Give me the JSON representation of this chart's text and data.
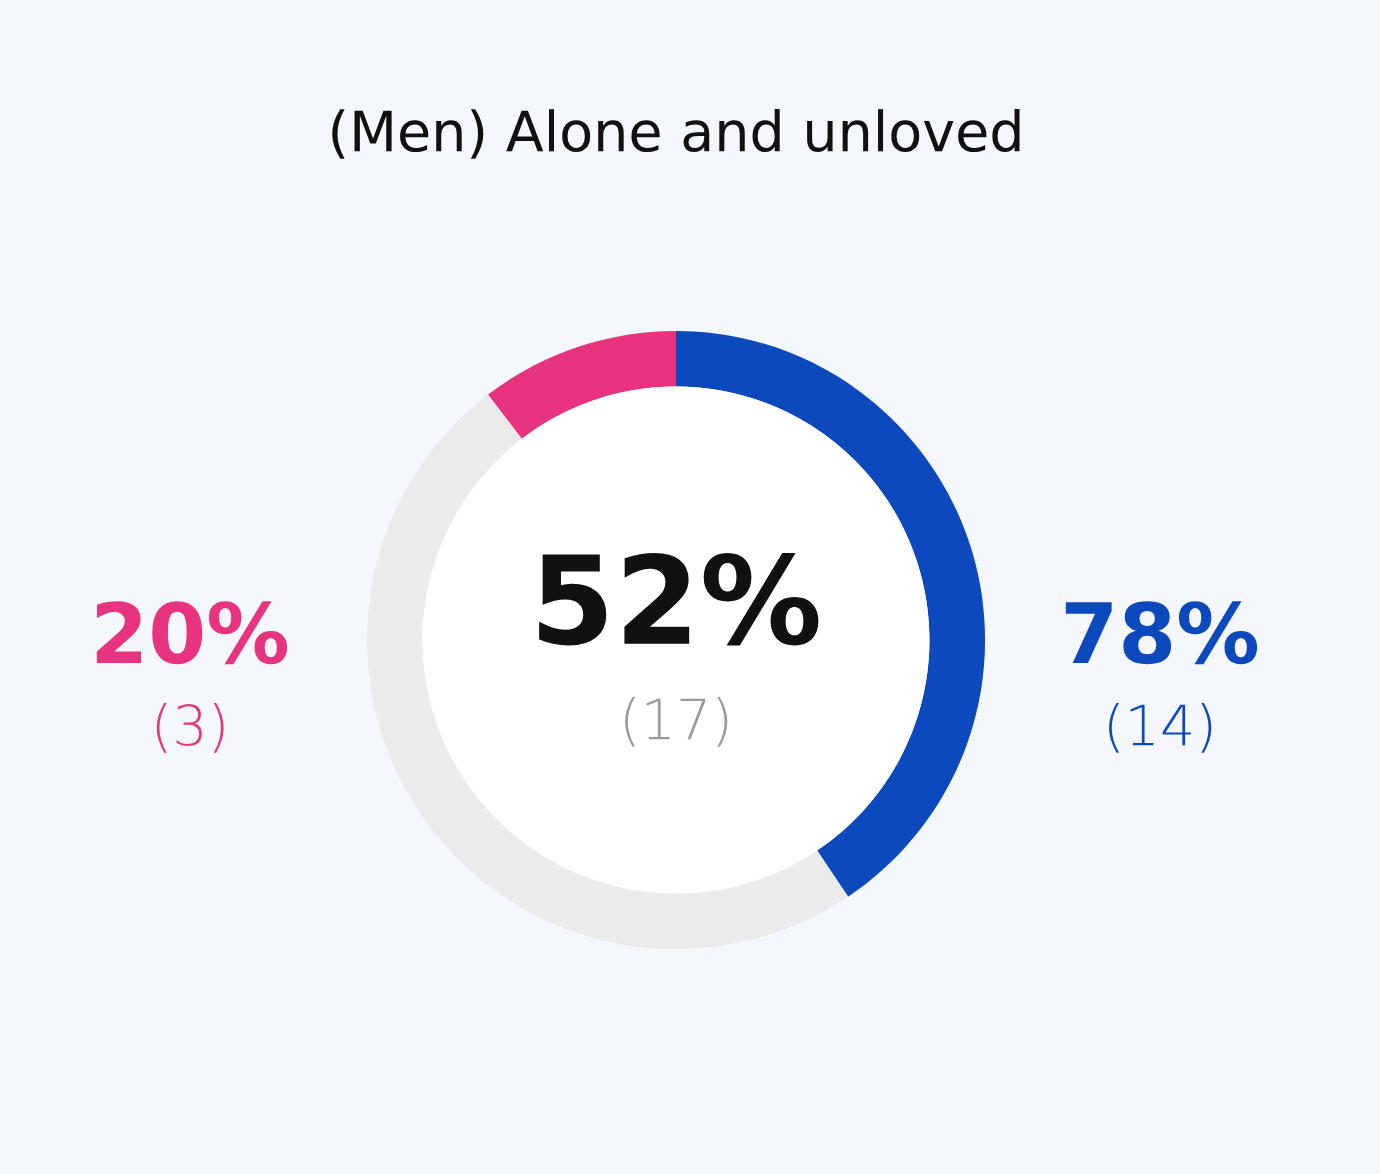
{
  "chart_data": {
    "type": "donut",
    "title": "(Men) Alone and unloved",
    "categories": [
      null,
      null,
      null
    ],
    "values": [
      40.6,
      49.0,
      10.4
    ],
    "colors": [
      "#0b49bd",
      "#ebebeb",
      "#e8347f"
    ],
    "annotations": [
      "52%",
      "(17)",
      "20%",
      "(3)",
      "78%",
      "(14)"
    ]
  }
}
